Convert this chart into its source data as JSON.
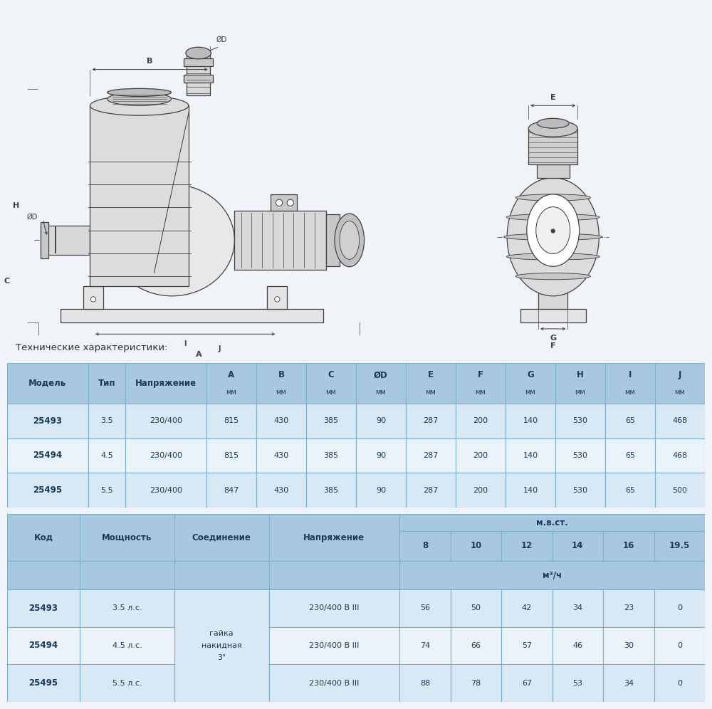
{
  "bg_color": "#f0f4f8",
  "white": "#ffffff",
  "tech_label": "Технические характеристики:",
  "table1": {
    "header_bg": "#a8c8e0",
    "row_bg_light": "#d8e8f4",
    "row_bg_white": "#eaf3fa",
    "border_color": "#7ab0cc",
    "columns": [
      "Модель",
      "Тип",
      "Напряжение",
      "A\nмм",
      "B\nмм",
      "C\nмм",
      "ØD\nмм",
      "E\nмм",
      "F\nмм",
      "G\nмм",
      "H\nмм",
      "I\nмм",
      "J\nмм"
    ],
    "col_widths_raw": [
      1.3,
      0.6,
      1.3,
      0.8,
      0.8,
      0.8,
      0.8,
      0.8,
      0.8,
      0.8,
      0.8,
      0.8,
      0.8
    ],
    "rows": [
      [
        "25493",
        "3.5",
        "230/400",
        "815",
        "430",
        "385",
        "90",
        "287",
        "200",
        "140",
        "530",
        "65",
        "468"
      ],
      [
        "25494",
        "4.5",
        "230/400",
        "815",
        "430",
        "385",
        "90",
        "287",
        "200",
        "140",
        "530",
        "65",
        "468"
      ],
      [
        "25495",
        "5.5",
        "230/400",
        "847",
        "430",
        "385",
        "90",
        "287",
        "200",
        "140",
        "530",
        "65",
        "500"
      ]
    ],
    "bold_col": 0
  },
  "table2": {
    "header_bg": "#a8c8e0",
    "row_bg_light": "#d8e8f4",
    "row_bg_white": "#eaf3fa",
    "border_color": "#7ab0cc",
    "col_headers": [
      "Код",
      "Мощность",
      "Соединение",
      "Напряжение",
      "8",
      "10",
      "12",
      "14",
      "16",
      "19.5"
    ],
    "col_widths_raw": [
      1.0,
      1.3,
      1.3,
      1.8,
      0.7,
      0.7,
      0.7,
      0.7,
      0.7,
      0.7
    ],
    "subheader_mvst": "м.в.ст.",
    "subheader_m3": "м³/ч",
    "rows": [
      [
        "25493",
        "3.5 л.с.",
        "3\"\nнакидная\nгайка",
        "230/400 В III",
        "56",
        "50",
        "42",
        "34",
        "23",
        "0"
      ],
      [
        "25494",
        "4.5 л.с.",
        "",
        "230/400 В III",
        "74",
        "66",
        "57",
        "46",
        "30",
        "0"
      ],
      [
        "25495",
        "5.5 л.с.",
        "",
        "230/400 В III",
        "88",
        "78",
        "67",
        "53",
        "34",
        "0"
      ]
    ],
    "bold_col": 0
  },
  "draw_color": "#404040",
  "center_line_color": "#cc3333"
}
